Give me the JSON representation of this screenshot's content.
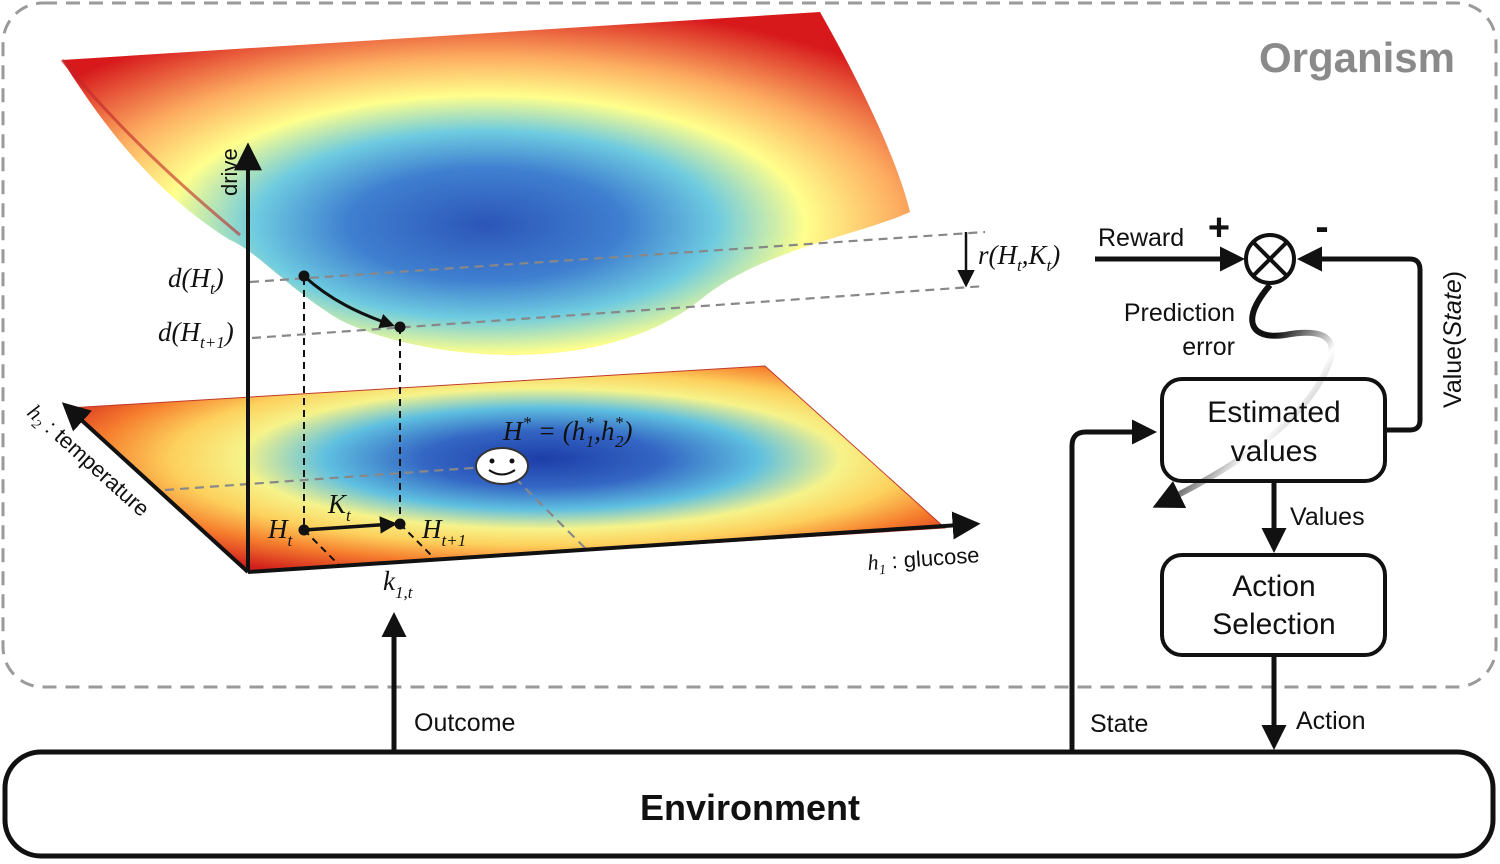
{
  "organism_label": "Organism",
  "environment_label": "Environment",
  "axes": {
    "drive": "drive",
    "h1_var": "h",
    "h1_sub": "1",
    "h1_name": " : glucose",
    "h2_var": "h",
    "h2_sub": "2",
    "h2_name": " : temperature"
  },
  "surface_labels": {
    "d_Ht": {
      "pre": "d(H",
      "sub": "t",
      "post": ")"
    },
    "d_Ht1": {
      "pre": "d(H",
      "sub": "t+1",
      "post": ")"
    },
    "reward_fn": {
      "pre": "r(H",
      "sub1": "t",
      "mid": ",K",
      "sub2": "t",
      "post": ")"
    },
    "setpoint": {
      "main": "H",
      "sup": "*",
      "eq": " = (h",
      "sub1": "1",
      "sup1": "*",
      "comma": ",h",
      "sub2": "2",
      "sup2": "*",
      "close": ")"
    },
    "Ht": {
      "main": "H",
      "sub": "t"
    },
    "Ht1": {
      "main": "H",
      "sub": "t+1"
    },
    "Kt": {
      "main": "K",
      "sub": "t"
    },
    "k1t": {
      "main": "k",
      "sub": "1,t"
    }
  },
  "flow": {
    "reward": "Reward",
    "plus": "+",
    "minus": "-",
    "prediction_error_line1": "Prediction",
    "prediction_error_line2": "error",
    "value_state_pre": "Value(",
    "value_state_italic": "State",
    "value_state_post": ")",
    "estimated_values_line1": "Estimated",
    "estimated_values_line2": "values",
    "values": "Values",
    "action_selection_line1": "Action",
    "action_selection_line2": "Selection",
    "action": "Action",
    "state": "State",
    "outcome": "Outcome"
  },
  "colors": {
    "dashed_border": "#9a9a9a",
    "organism_text": "#8a8a8a",
    "surface_hot": "#d7191c",
    "surface_warm": "#fdae61",
    "surface_mid": "#ffff8c",
    "surface_cool": "#6ecbe0",
    "surface_cold": "#2c56b8"
  }
}
